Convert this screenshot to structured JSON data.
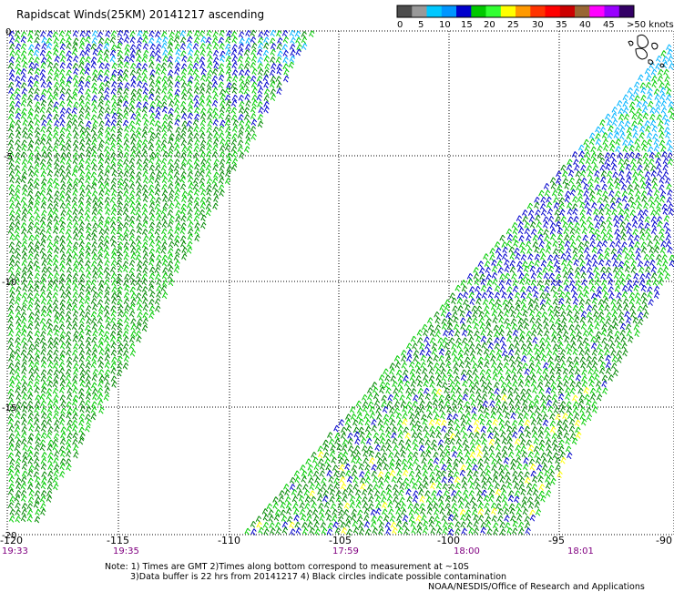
{
  "title": "Rapidscat Winds(25KM) 20141217 ascending",
  "legend": {
    "labels": [
      "0",
      "5",
      "10",
      "15",
      "20",
      "25",
      "30",
      "35",
      "40",
      "45",
      ">50 knots"
    ],
    "colors": [
      "#4d4d4d",
      "#999999",
      "#00c8ff",
      "#0096ff",
      "#0000cc",
      "#00c800",
      "#32ff32",
      "#ffff00",
      "#ff9900",
      "#ff3300",
      "#ff0000",
      "#cc0000",
      "#996633",
      "#ff00ff",
      "#9900ff",
      "#330066"
    ]
  },
  "axes": {
    "lat_labels": [
      "0",
      "-5",
      "-10",
      "-15",
      "-20"
    ],
    "lon_labels": [
      "-120",
      "-115",
      "-110",
      "-105",
      "-100",
      "-95",
      "-90"
    ],
    "time_labels": [
      "19:33",
      "19:35",
      "17:59",
      "18:00",
      "18:01"
    ]
  },
  "notes": [
    "Note: 1) Times are GMT 2)Times along bottom correspond to measurement at ~10S",
    "3)Data buffer is 22 hrs from 20141217 4) Black circles indicate possible contamination",
    "NOAA/NESDIS/Office of Research and Applications"
  ],
  "barb_colors": {
    "light_blue": "#00b4ff",
    "blue": "#0000cc",
    "green": "#00cc00",
    "dark_green": "#008800",
    "yellow": "#ffff00"
  }
}
